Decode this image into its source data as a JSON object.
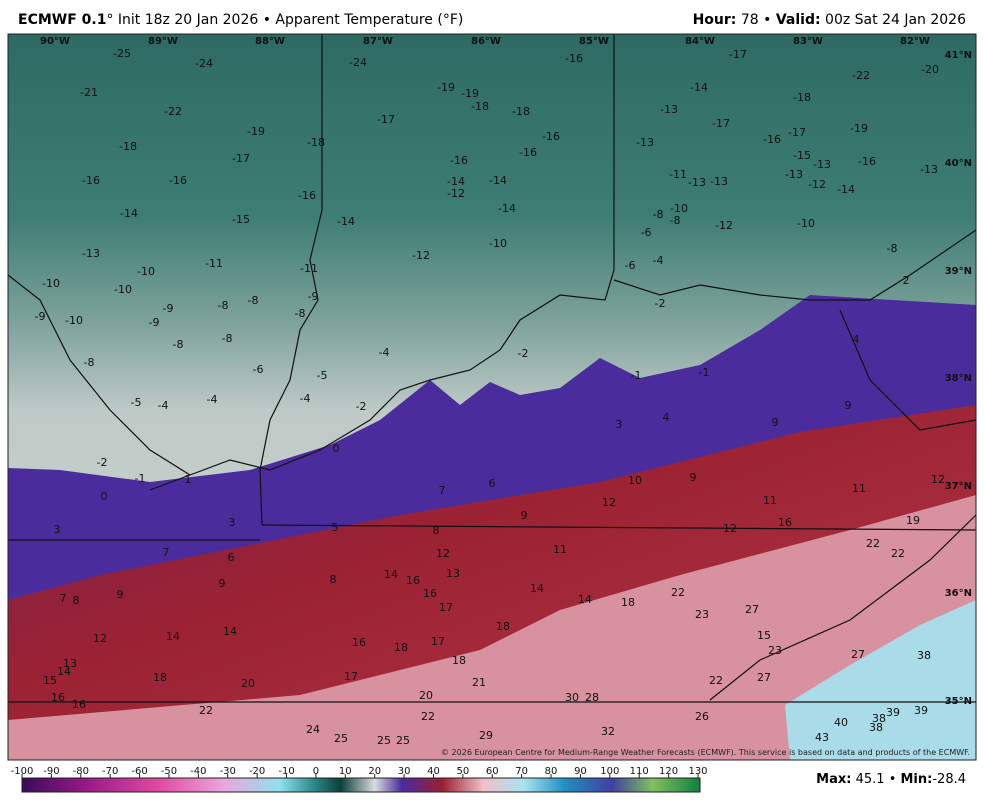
{
  "header": {
    "model": "ECMWF 0.1",
    "title": "° Init 18z 20 Jan 2026 • Apparent Temperature (°F)",
    "hour_label": "Hour:",
    "hour": 78,
    "separator": "•",
    "valid_label": "Valid:",
    "valid": "00z Sat 24 Jan 2026"
  },
  "map": {
    "longitudes": [
      "90°W",
      "89°W",
      "88°W",
      "87°W",
      "86°W",
      "85°W",
      "84°W",
      "83°W",
      "82°W"
    ],
    "latitudes": [
      "41°N",
      "40°N",
      "39°N",
      "38°N",
      "37°N",
      "36°N",
      "35°N"
    ],
    "values": [
      -25,
      -24,
      -21,
      -22,
      -19,
      -18,
      -17,
      -16,
      -16,
      -14,
      -15,
      -16,
      -18,
      -13,
      -10,
      -11,
      -11,
      -10,
      -10,
      -9,
      -8,
      -8,
      -9,
      -8,
      -9,
      -10,
      -9,
      -8,
      -8,
      -8,
      -6,
      -5,
      -4,
      -4,
      -5,
      -4,
      -4,
      -2,
      0,
      -2,
      -1,
      0,
      1,
      3,
      3,
      5,
      7,
      6,
      9,
      8,
      7,
      8,
      9,
      12,
      14,
      14,
      13,
      14,
      15,
      16,
      16,
      18,
      20,
      22,
      -24,
      -19,
      -19,
      -18,
      -18,
      -17,
      -16,
      -16,
      -16,
      -14,
      -12,
      -14,
      -14,
      -14,
      -10,
      -12,
      -16,
      -2,
      -2,
      -1,
      -1,
      -6,
      -4,
      -6,
      -8,
      -8,
      -10,
      -11,
      -13,
      -13,
      -13,
      -13,
      -14,
      -17,
      -17,
      -16,
      -17,
      -15,
      -18,
      -22,
      -20,
      -19,
      -16,
      -13,
      -13,
      -12,
      -14,
      -13,
      -12,
      -10,
      -8,
      2,
      4,
      9,
      3,
      4,
      9,
      7,
      6,
      10,
      9,
      12,
      11,
      11,
      12,
      9,
      8,
      12,
      16,
      19,
      22,
      22,
      11,
      12,
      13,
      14,
      16,
      16,
      17,
      14,
      14,
      18,
      22,
      23,
      27,
      18,
      16,
      18,
      17,
      18,
      15,
      23,
      27,
      38,
      17,
      21,
      20,
      30,
      28,
      22,
      27,
      22,
      32,
      26,
      40,
      38,
      39,
      39,
      38,
      43,
      24,
      25,
      25,
      25,
      29
    ],
    "credit": "© 2026 European Centre for Medium-Range Weather Forecasts (ECMWF). This service is based on data and products of the ECMWF."
  },
  "colorbar": {
    "ticks": [
      -100,
      -90,
      -80,
      -70,
      -60,
      -50,
      -40,
      -30,
      -20,
      -10,
      0,
      10,
      20,
      30,
      40,
      50,
      60,
      70,
      80,
      90,
      100,
      110,
      120,
      130
    ]
  },
  "footer": {
    "max_label": "Max:",
    "max": 45.1,
    "separator": "•",
    "min_label": "Min:",
    "min": -28.4
  }
}
